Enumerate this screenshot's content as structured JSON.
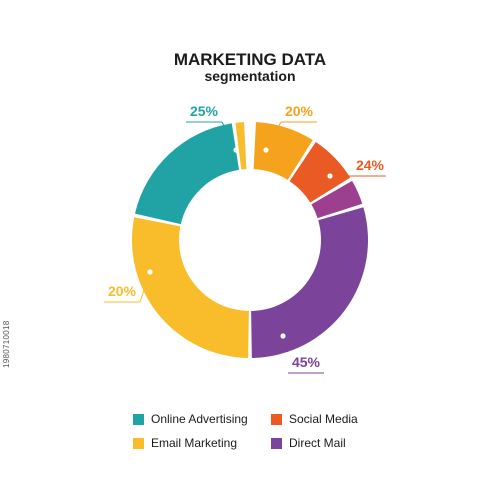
{
  "chart_data": {
    "type": "pie",
    "title": "MARKETING DATA",
    "subtitle": "segmentation",
    "slices": [
      {
        "label": "Online Advertising",
        "value": 25,
        "display": "25%",
        "color": "#21a3a6"
      },
      {
        "label": "Social Media",
        "value": 24,
        "display": "24%",
        "color": "#e95a24"
      },
      {
        "label": "Email Marketing",
        "value": 20,
        "display": "20%",
        "color": "#f9bd2c"
      },
      {
        "label": "Direct Mail",
        "value": 45,
        "display": "45%",
        "color": "#7b449a"
      }
    ],
    "extra_label": "20%",
    "extra_label_color": "#f5a21c",
    "legend": [
      {
        "label": "Online Advertising",
        "color": "#21a3a6"
      },
      {
        "label": "Social Media",
        "color": "#e95a24"
      },
      {
        "label": "Email Marketing",
        "color": "#f9bd2c"
      },
      {
        "label": "Direct Mail",
        "color": "#7b449a"
      }
    ],
    "legend_placement": "bottom",
    "donut": true
  },
  "side_code": "1980710018"
}
